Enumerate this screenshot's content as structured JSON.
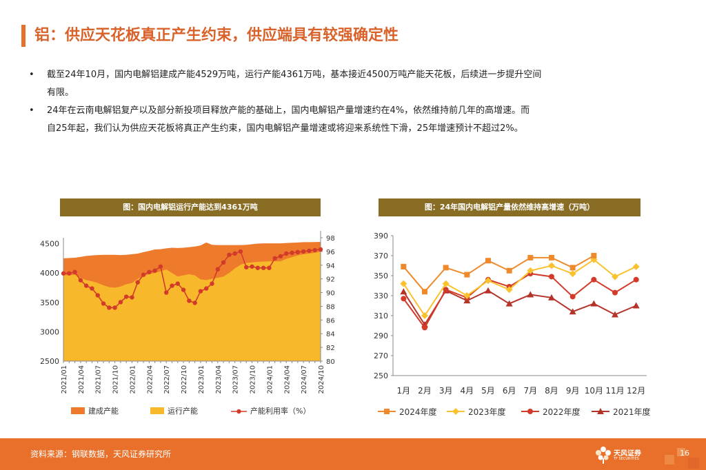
{
  "header": {
    "title": "铝：供应天花板真正产生约束，供应端具有较强确定性"
  },
  "bullets": [
    {
      "dot": "•",
      "lines": [
        "截至24年10月，国内电解铝建成产能4529万吨，运行产能4361万吨，基本接近4500万吨产能天花板，后续进一步提升空间",
        "有限。"
      ]
    },
    {
      "dot": "•",
      "lines": [
        "24年在云南电解铝复产以及部分新投项目释放产能的基础上，国内电解铝产量增速约在4%，依然维持前几年的高增速。而",
        "自25年起，我们认为供应天花板将真正产生约束，国内电解铝产量增速或将迎来系统性下滑，25年增速预计不超过2%。"
      ]
    }
  ],
  "colors": {
    "accent": "#e8702a",
    "title_text": "#d9622b",
    "chart_header": "#8a6d24",
    "built": "#ee7a2c",
    "running": "#f7b92b",
    "rate": "#d23a2a",
    "y2024": "#ef8a2c",
    "y2023": "#f9c22e",
    "y2022": "#d23a2a",
    "y2021": "#b5342a"
  },
  "chart_data": [
    {
      "type": "area",
      "title": "图：国内电解铝运行产能达到4361万吨",
      "x": [
        "2021/01",
        "2021/02",
        "2021/03",
        "2021/04",
        "2021/05",
        "2021/06",
        "2021/07",
        "2021/08",
        "2021/09",
        "2021/10",
        "2021/11",
        "2021/12",
        "2022/01",
        "2022/02",
        "2022/03",
        "2022/04",
        "2022/05",
        "2022/06",
        "2022/07",
        "2022/08",
        "2022/09",
        "2022/10",
        "2022/11",
        "2022/12",
        "2023/01",
        "2023/02",
        "2023/03",
        "2023/04",
        "2023/05",
        "2023/06",
        "2023/07",
        "2023/08",
        "2023/09",
        "2023/10",
        "2023/11",
        "2023/12",
        "2024/01",
        "2024/02",
        "2024/03",
        "2024/04",
        "2024/05",
        "2024/06",
        "2024/07",
        "2024/08",
        "2024/09",
        "2024/10"
      ],
      "x_ticks": [
        "2021/01",
        "2021/04",
        "2021/07",
        "2021/10",
        "2022/01",
        "2022/04",
        "2022/07",
        "2022/10",
        "2023/01",
        "2023/04",
        "2023/07",
        "2023/10",
        "2024/01",
        "2024/04",
        "2024/07",
        "2024/10"
      ],
      "series": [
        {
          "name": "建成产能",
          "type": "area",
          "axis": "left",
          "values": [
            4250,
            4255,
            4260,
            4275,
            4290,
            4300,
            4305,
            4310,
            4310,
            4310,
            4305,
            4310,
            4320,
            4330,
            4355,
            4375,
            4400,
            4405,
            4420,
            4430,
            4425,
            4430,
            4440,
            4450,
            4470,
            4520,
            4480,
            4475,
            4475,
            4475,
            4475,
            4475,
            4480,
            4490,
            4500,
            4505,
            4505,
            4505,
            4505,
            4510,
            4515,
            4520,
            4525,
            4525,
            4527,
            4529
          ]
        },
        {
          "name": "运行产能",
          "type": "area",
          "axis": "left",
          "values": [
            3960,
            3965,
            3970,
            3920,
            3880,
            3860,
            3830,
            3790,
            3760,
            3750,
            3770,
            3810,
            3830,
            3900,
            3950,
            3980,
            4000,
            4030,
            4060,
            4000,
            3940,
            3960,
            3980,
            3960,
            3890,
            3880,
            3900,
            3920,
            3940,
            4000,
            4080,
            4140,
            4170,
            4180,
            4190,
            4195,
            4200,
            4200,
            4200,
            4240,
            4270,
            4300,
            4320,
            4330,
            4345,
            4361
          ]
        },
        {
          "name": "产能利用率（%）",
          "type": "line",
          "axis": "right",
          "values": [
            92.8,
            92.8,
            93.0,
            91.8,
            91.0,
            90.6,
            89.6,
            88.4,
            87.8,
            87.8,
            88.6,
            89.4,
            89.3,
            91.5,
            92.6,
            93.0,
            93.2,
            93.8,
            90.0,
            91.0,
            91.3,
            90.4,
            88.8,
            88.5,
            90.2,
            90.6,
            91.3,
            93.4,
            94.4,
            95.5,
            95.7,
            96.0,
            93.7,
            93.8,
            93.6,
            93.6,
            93.6,
            95.0,
            95.3,
            95.7,
            95.8,
            95.9,
            96.0,
            96.1,
            96.2,
            96.3
          ]
        }
      ],
      "ylim_left": [
        2500,
        4600
      ],
      "yticks_left": [
        2500,
        3000,
        3500,
        4000,
        4500
      ],
      "ylim_right": [
        80,
        98
      ],
      "yticks_right": [
        80,
        82,
        84,
        86,
        88,
        90,
        92,
        94,
        96,
        98
      ],
      "legend": "bottom"
    },
    {
      "type": "line",
      "title": "图：24年国内电解铝产量依然维持高增速（万吨）",
      "categories": [
        "1月",
        "2月",
        "3月",
        "4月",
        "5月",
        "6月",
        "7月",
        "8月",
        "9月",
        "10月",
        "11月",
        "12月"
      ],
      "series": [
        {
          "name": "2024年度",
          "marker": "square",
          "values": [
            359,
            334,
            358,
            351,
            365,
            355,
            368,
            368,
            358,
            370,
            null,
            null
          ]
        },
        {
          "name": "2023年度",
          "marker": "diamond",
          "values": [
            342,
            310,
            342,
            330,
            345,
            336,
            355,
            360,
            352,
            366,
            349,
            359
          ]
        },
        {
          "name": "2022年度",
          "marker": "circle",
          "values": [
            327,
            298,
            336,
            328,
            346,
            339,
            352,
            349,
            329,
            346,
            333,
            346
          ]
        },
        {
          "name": "2021年度",
          "marker": "triangle",
          "values": [
            334,
            301,
            335,
            325,
            335,
            322,
            331,
            328,
            314,
            322,
            311,
            320
          ]
        }
      ],
      "ylim": [
        250,
        390
      ],
      "yticks": [
        250,
        270,
        290,
        310,
        330,
        350,
        370,
        390
      ],
      "legend": "bottom"
    }
  ],
  "footer": {
    "source": "资料来源：钢联数据，天风证券研究所",
    "page": "16",
    "logo_text": "天风证券",
    "logo_sub": "TF SECURITIES"
  }
}
